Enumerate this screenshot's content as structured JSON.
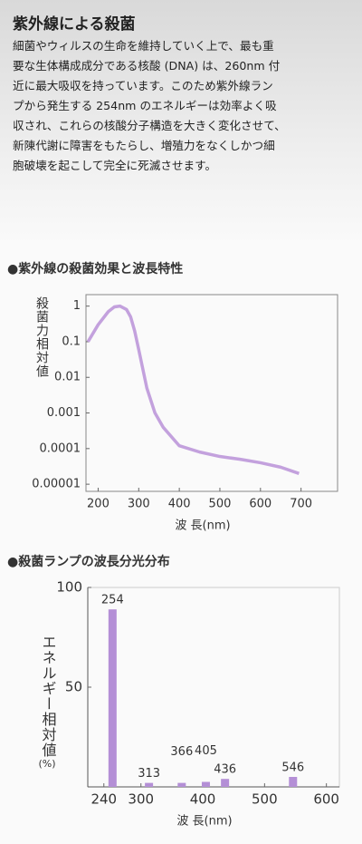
{
  "title": "紫外線による殺菌",
  "paragraph_lines": [
    "細菌やウィルスの生命を維持していく上で、最も重",
    "要な生体構成成分である核酸 (DNA) は、260nm 付",
    "近に最大吸収を持っています。このため紫外線ラン",
    "プから発生する 254nm のエネルギーは効率よく吸",
    "収され、これらの核酸分子構造を大きく変化させて、",
    "新陳代謝に障害をもたらし、増殖力をなくしかつ細",
    "胞破壊を起こして完全に死滅させます。"
  ],
  "chart_data": [
    {
      "type": "line",
      "title": "●紫外線の殺菌効果と波長特性",
      "y_label": "殺菌力相対値",
      "x_label": "波 長(nm)",
      "log_y": true,
      "color": "#c3a1dd",
      "x": [
        175,
        200,
        225,
        240,
        254,
        270,
        280,
        290,
        300,
        320,
        340,
        360,
        400,
        450,
        500,
        550,
        600,
        650,
        695
      ],
      "values": [
        0.1,
        0.3,
        0.7,
        0.95,
        1,
        0.8,
        0.5,
        0.2,
        0.06,
        0.005,
        0.001,
        0.0004,
        0.00012,
        8e-05,
        6e-05,
        5e-05,
        4e-05,
        3e-05,
        2e-05
      ],
      "xlim": [
        170,
        790
      ],
      "xticks": [
        200,
        300,
        400,
        500,
        600,
        700
      ],
      "ylim": [
        6.3e-06,
        2.1
      ],
      "yticks": [
        1,
        0.1,
        0.01,
        0.001,
        0.0001,
        1e-05
      ]
    },
    {
      "type": "bar",
      "title": "●殺菌ランプの波長分光分布",
      "y_label": "エネルギー相対値",
      "y_unit": "(%)",
      "x_label": "波 長(nm)",
      "color": "#b48fd6",
      "x": [
        254,
        313,
        366,
        405,
        436,
        546
      ],
      "values": [
        89,
        2,
        2,
        2.5,
        4,
        5
      ],
      "xlim": [
        214,
        621
      ],
      "xticks": [
        240,
        300,
        400,
        500,
        600
      ],
      "ylim": [
        0,
        100
      ],
      "yticks": [
        50,
        100
      ]
    }
  ]
}
